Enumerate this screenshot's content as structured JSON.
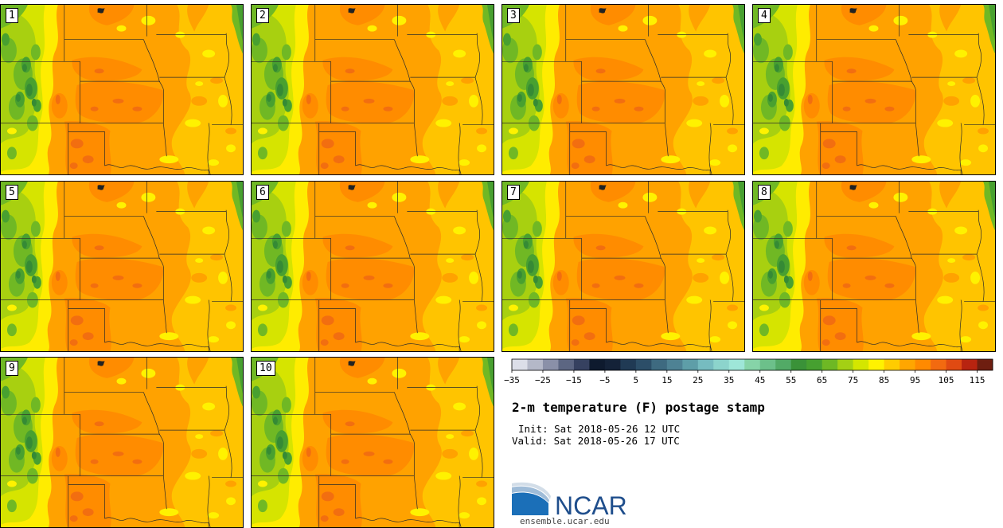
{
  "members": [
    {
      "label": "1"
    },
    {
      "label": "2"
    },
    {
      "label": "3"
    },
    {
      "label": "4"
    },
    {
      "label": "5"
    },
    {
      "label": "6"
    },
    {
      "label": "7"
    },
    {
      "label": "8"
    },
    {
      "label": "9"
    },
    {
      "label": "10"
    }
  ],
  "legend": {
    "units": "F",
    "range": [
      -35,
      120
    ],
    "colors": [
      "#dcdee8",
      "#b4b8c8",
      "#8a90a8",
      "#5c6682",
      "#364160",
      "#0e1a2e",
      "#142238",
      "#203a54",
      "#2c4e68",
      "#3e6a80",
      "#4e8294",
      "#5e9ea8",
      "#76bcc0",
      "#8cd4cc",
      "#9ee6d8",
      "#86d4a8",
      "#6cc08a",
      "#52aa66",
      "#3a9238",
      "#46a030",
      "#6eb824",
      "#a4d014",
      "#d4e600",
      "#fff200",
      "#ffcc00",
      "#ffa600",
      "#ff8a00",
      "#f26a10",
      "#e04a12",
      "#b82410",
      "#6e1e10"
    ],
    "ticks": [
      {
        "value": -35,
        "label": "−35"
      },
      {
        "value": -25,
        "label": "−25"
      },
      {
        "value": -15,
        "label": "−15"
      },
      {
        "value": -5,
        "label": "−5"
      },
      {
        "value": 5,
        "label": "5"
      },
      {
        "value": 15,
        "label": "15"
      },
      {
        "value": 25,
        "label": "25"
      },
      {
        "value": 35,
        "label": "35"
      },
      {
        "value": 45,
        "label": "45"
      },
      {
        "value": 55,
        "label": "55"
      },
      {
        "value": 65,
        "label": "65"
      },
      {
        "value": 75,
        "label": "75"
      },
      {
        "value": 85,
        "label": "85"
      },
      {
        "value": 95,
        "label": "95"
      },
      {
        "value": 105,
        "label": "105"
      },
      {
        "value": 115,
        "label": "115"
      }
    ]
  },
  "info": {
    "title": "2-m temperature (F) postage stamp",
    "init": "Init: Sat 2018-05-26 12 UTC",
    "valid": "Valid: Sat 2018-05-26 17 UTC"
  },
  "logo": {
    "wordmark": "NCAR",
    "site": "ensemble.ucar.edu",
    "wordmark_color": "#1f4e8c",
    "mark_color": "#1b6fb8"
  }
}
